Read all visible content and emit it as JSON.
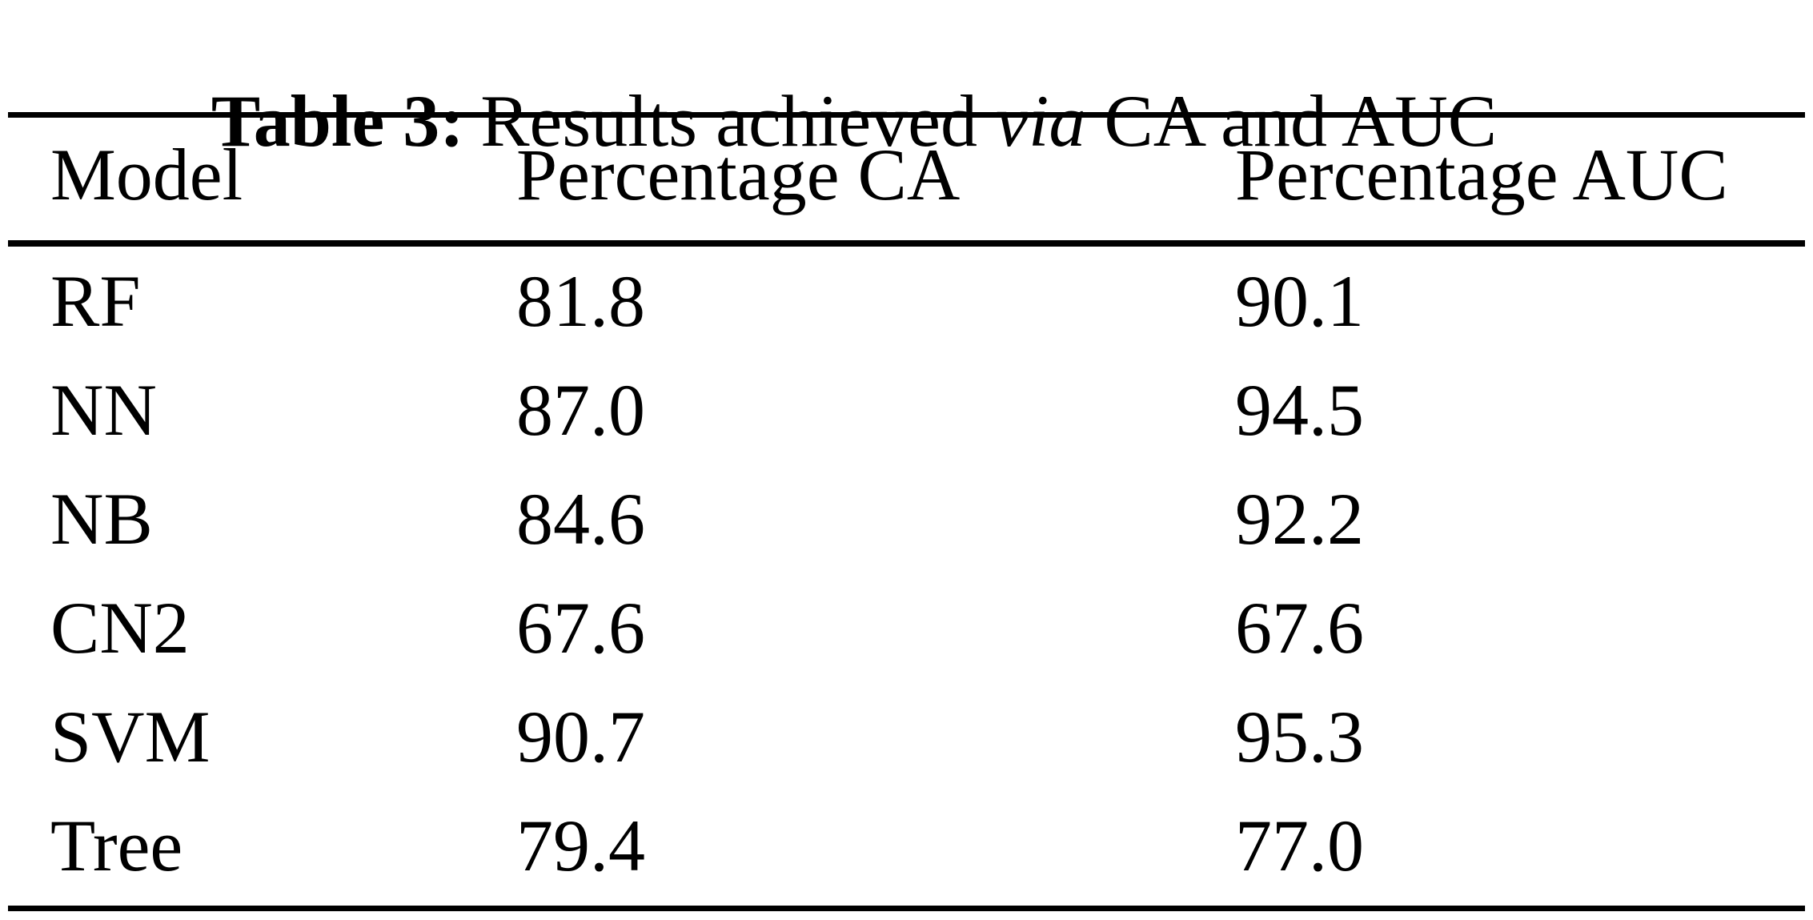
{
  "caption": {
    "label": "Table 3:",
    "text_before_italic": "Results achieved ",
    "italic_word": "via",
    "text_after_italic": " CA and AUC"
  },
  "table": {
    "headers": [
      "Model",
      "Percentage CA",
      "Percentage AUC"
    ],
    "rows": [
      {
        "model": "RF",
        "ca": "81.8",
        "auc": "90.1"
      },
      {
        "model": "NN",
        "ca": "87.0",
        "auc": "94.5"
      },
      {
        "model": "NB",
        "ca": "84.6",
        "auc": "92.2"
      },
      {
        "model": "CN2",
        "ca": "67.6",
        "auc": "67.6"
      },
      {
        "model": "SVM",
        "ca": "90.7",
        "auc": "95.3"
      },
      {
        "model": "Tree",
        "ca": "79.4",
        "auc": "77.0"
      }
    ]
  },
  "colors": {
    "text": "#000000",
    "background": "#ffffff",
    "rule": "#000000"
  }
}
